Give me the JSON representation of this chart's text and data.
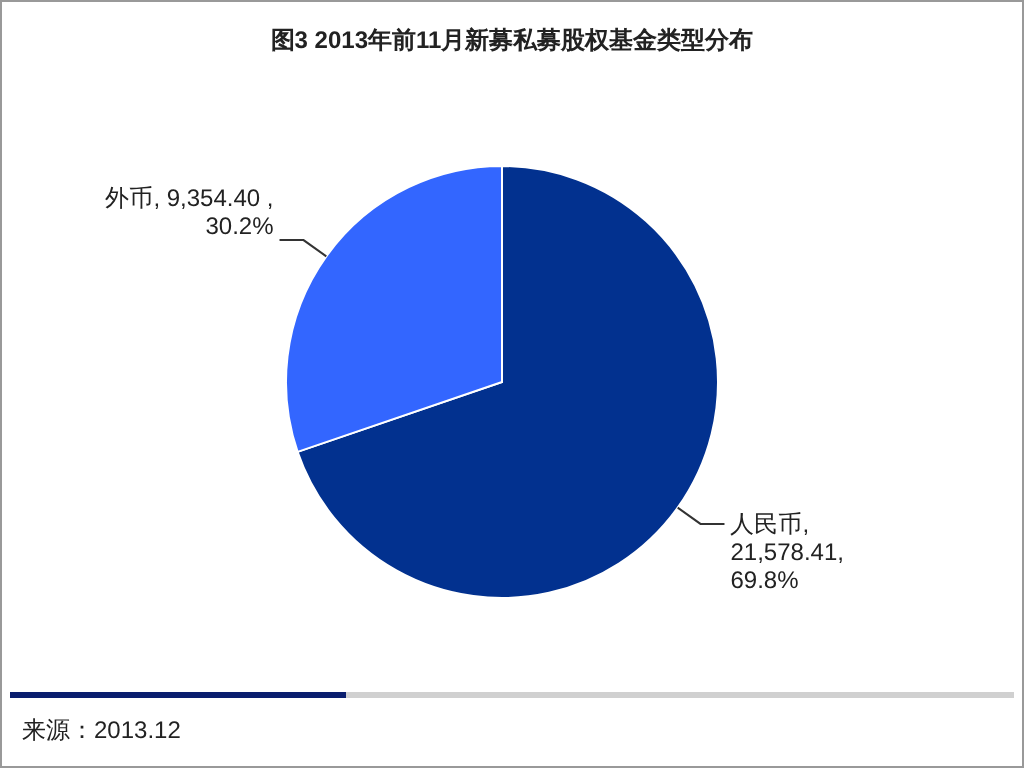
{
  "chart_data": {
    "type": "pie",
    "title": "图3 2013年前11月新募私募股权基金类型分布",
    "categories": [
      "人民币",
      "外币"
    ],
    "values": [
      21578.41,
      9354.4
    ],
    "value_labels": [
      ", 21,578.41, 69.8%",
      ", 9,354.40 , 30.2%"
    ],
    "colors": [
      "#02318f",
      "#3366ff"
    ],
    "annotations": [
      "来源：2013.12"
    ]
  }
}
